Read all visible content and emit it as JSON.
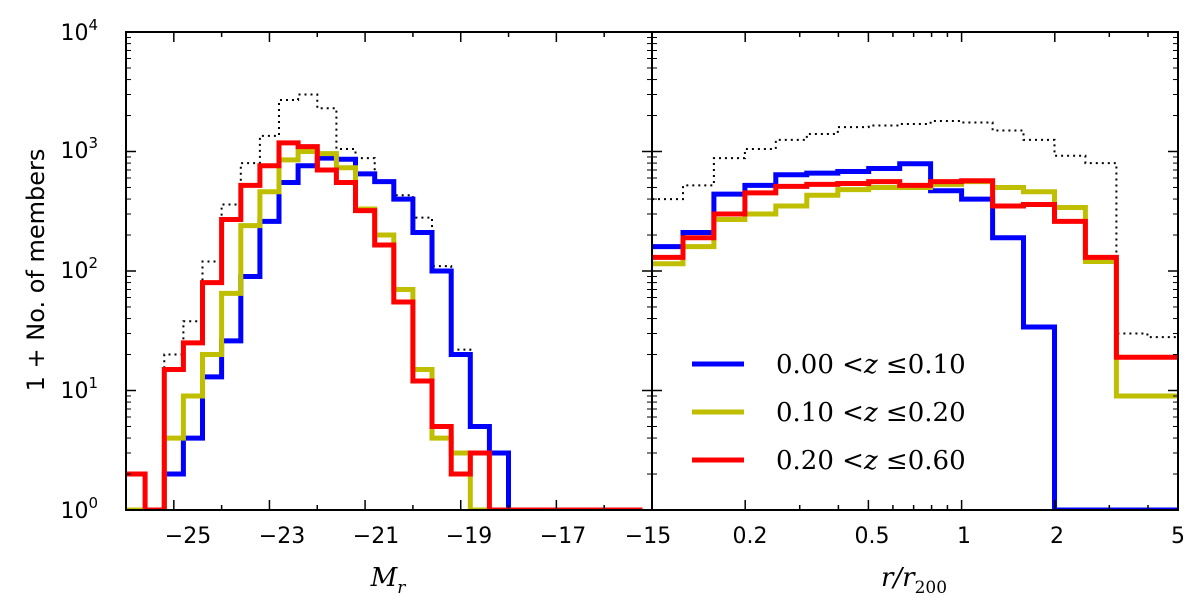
{
  "chart_data": [
    {
      "type": "histogram-step",
      "panel": "left",
      "xlabel": "M_r",
      "xlabel_main": "M",
      "xlabel_sub": "r",
      "ylabel": "1 + No. of members",
      "xlim": [
        -26,
        -15
      ],
      "ylim_log10": [
        0,
        4
      ],
      "xticks": [
        -25,
        -23,
        -21,
        -19,
        -17,
        -15
      ],
      "xtick_labels": [
        "−25",
        "−23",
        "−21",
        "−19",
        "−17",
        "−15"
      ],
      "yticks_log10": [
        0,
        1,
        2,
        3,
        4
      ],
      "ytick_base": "10",
      "ytick_exps": [
        "0",
        "1",
        "2",
        "3",
        "4"
      ],
      "bin_edges": [
        -26.0,
        -25.6,
        -25.2,
        -24.8,
        -24.4,
        -24.0,
        -23.6,
        -23.2,
        -22.8,
        -22.4,
        -22.0,
        -21.6,
        -21.2,
        -20.8,
        -20.4,
        -20.0,
        -19.6,
        -19.2,
        -18.8,
        -18.4,
        -18.0,
        -17.6,
        -17.2,
        -16.8,
        -16.4,
        -16.0,
        -15.6,
        -15.2
      ],
      "series": [
        {
          "name": "all",
          "color": "#000000",
          "style": "dotted",
          "values": [
            2,
            1,
            20,
            38,
            120,
            360,
            800,
            1350,
            2700,
            3000,
            2300,
            1050,
            880,
            560,
            430,
            280,
            110,
            22,
            5,
            3,
            1,
            1,
            1,
            1,
            1,
            1,
            1
          ]
        },
        {
          "name": "0.00 <z ≤0.10",
          "color": "#0000ff",
          "style": "solid",
          "values": [
            1,
            1,
            2,
            4,
            13,
            26,
            90,
            260,
            550,
            760,
            880,
            860,
            650,
            560,
            400,
            210,
            100,
            20,
            5,
            3,
            1,
            1,
            1,
            1,
            1,
            1,
            1
          ]
        },
        {
          "name": "0.10 <z ≤0.20",
          "color": "#bfbf00",
          "style": "solid",
          "values": [
            1,
            1,
            4,
            9,
            20,
            65,
            240,
            460,
            850,
            1000,
            960,
            730,
            330,
            200,
            70,
            15,
            4,
            3,
            1,
            1,
            1,
            1,
            1,
            1,
            1,
            1,
            1
          ]
        },
        {
          "name": "0.20 <z ≤0.60",
          "color": "#ff0000",
          "style": "solid",
          "values": [
            2,
            1,
            15,
            25,
            80,
            270,
            520,
            760,
            1180,
            1100,
            700,
            550,
            320,
            165,
            55,
            12,
            5,
            2,
            3,
            1,
            1,
            1,
            1,
            1,
            1,
            1,
            1
          ]
        }
      ]
    },
    {
      "type": "histogram-step",
      "panel": "right",
      "xlabel": "r/r_200",
      "xlabel_main": "r/r",
      "xlabel_sub": "200",
      "xscale": "log",
      "xlim": [
        0.1,
        5
      ],
      "ylim_log10": [
        0,
        4
      ],
      "xticks": [
        0.2,
        0.5,
        1,
        2,
        5
      ],
      "xtick_labels": [
        "0.2",
        "0.5",
        "1",
        "2",
        "5"
      ],
      "bin_edges_log10": [
        -1.0,
        -0.9,
        -0.8,
        -0.7,
        -0.6,
        -0.5,
        -0.4,
        -0.3,
        -0.2,
        -0.1,
        0.0,
        0.1,
        0.2,
        0.3,
        0.4,
        0.5,
        0.6,
        0.7
      ],
      "series": [
        {
          "name": "all",
          "color": "#000000",
          "style": "dotted",
          "values": [
            400,
            520,
            880,
            1050,
            1250,
            1400,
            1600,
            1650,
            1700,
            1800,
            1750,
            1500,
            1250,
            920,
            800,
            30,
            28
          ]
        },
        {
          "name": "0.00 <z ≤0.10",
          "color": "#0000ff",
          "style": "solid",
          "values": [
            160,
            210,
            440,
            520,
            640,
            660,
            680,
            720,
            790,
            470,
            400,
            190,
            34,
            1,
            1,
            1,
            1
          ]
        },
        {
          "name": "0.10 <z ≤0.20",
          "color": "#bfbf00",
          "style": "solid",
          "values": [
            115,
            160,
            270,
            300,
            350,
            430,
            480,
            500,
            500,
            530,
            560,
            500,
            460,
            340,
            120,
            9,
            9
          ]
        },
        {
          "name": "0.20 <z ≤0.60",
          "color": "#ff0000",
          "style": "solid",
          "values": [
            130,
            190,
            300,
            450,
            510,
            530,
            540,
            560,
            520,
            560,
            570,
            350,
            360,
            260,
            130,
            19,
            19
          ]
        }
      ]
    }
  ],
  "legend": {
    "placement": "lower-left of right panel",
    "entries": [
      {
        "label": "0.00 <z ≤0.10",
        "lo": "0.00",
        "hi": "0.10",
        "color": "#0000ff"
      },
      {
        "label": "0.10 <z ≤0.20",
        "lo": "0.10",
        "hi": "0.20",
        "color": "#bfbf00"
      },
      {
        "label": "0.20 <z ≤0.60",
        "lo": "0.20",
        "hi": "0.60",
        "color": "#ff0000"
      }
    ]
  }
}
